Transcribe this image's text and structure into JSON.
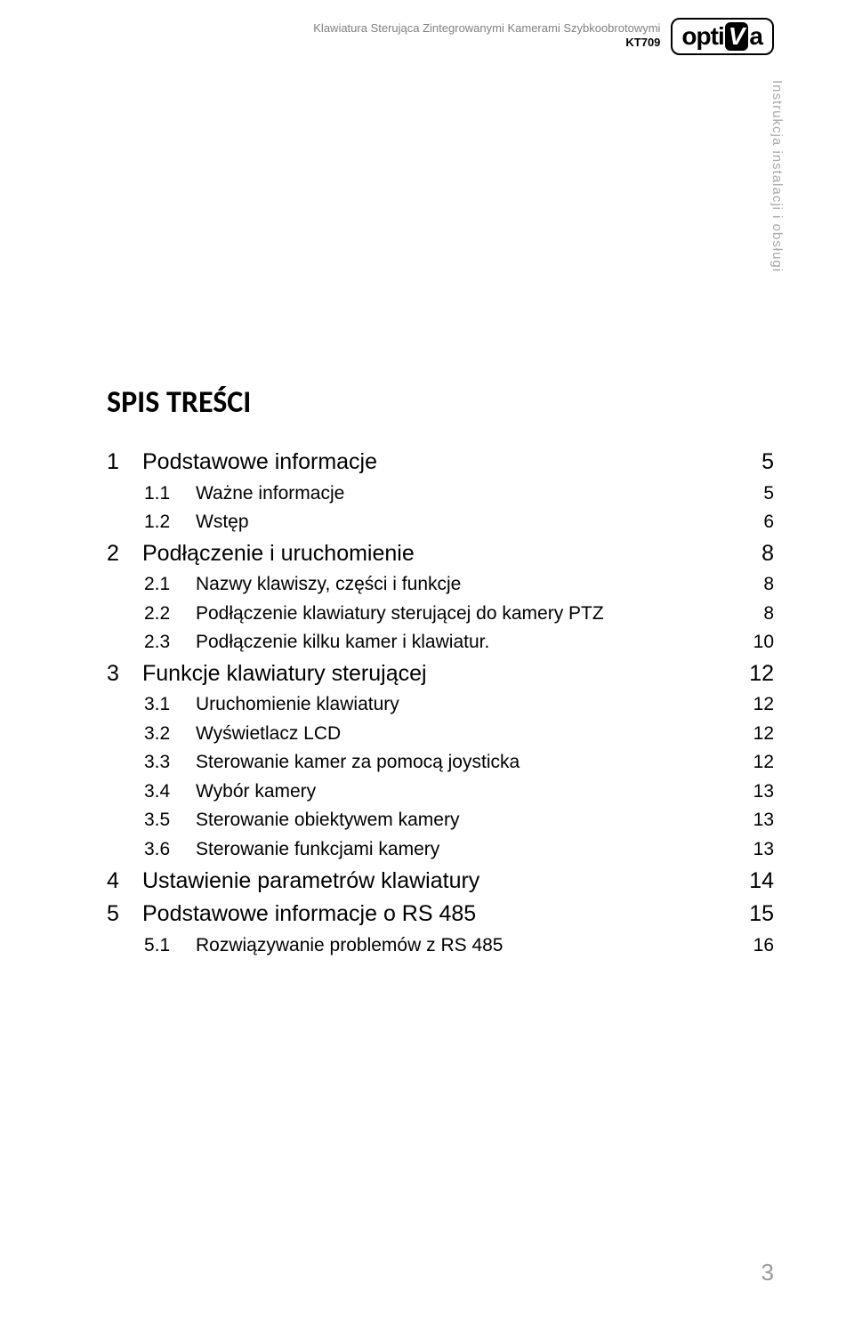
{
  "header": {
    "title": "Klawiatura Sterująca Zintegrowanymi Kamerami Szybkoobrotowymi",
    "model": "KT709",
    "logo_opti": "opti",
    "logo_v": "V",
    "logo_a": "a"
  },
  "vertical_label": "Instrukcja instalacji i obsługi",
  "toc_title": "SPIS TREŚCI",
  "toc": [
    {
      "level": 1,
      "num": "1",
      "label": "Podstawowe informacje",
      "page": "5"
    },
    {
      "level": 2,
      "num": "1.1",
      "label": "Ważne informacje",
      "page": "5"
    },
    {
      "level": 2,
      "num": "1.2",
      "label": "Wstęp",
      "page": "6"
    },
    {
      "level": 1,
      "num": "2",
      "label": "Podłączenie i uruchomienie",
      "page": "8"
    },
    {
      "level": 2,
      "num": "2.1",
      "label": "Nazwy klawiszy, części i funkcje",
      "page": "8"
    },
    {
      "level": 2,
      "num": "2.2",
      "label": "Podłączenie klawiatury sterującej do kamery PTZ",
      "page": "8"
    },
    {
      "level": 2,
      "num": "2.3",
      "label": "Podłączenie kilku kamer i klawiatur.",
      "page": "10"
    },
    {
      "level": 1,
      "num": "3",
      "label": "Funkcje klawiatury sterującej",
      "page": "12"
    },
    {
      "level": 2,
      "num": "3.1",
      "label": "Uruchomienie klawiatury",
      "page": "12"
    },
    {
      "level": 2,
      "num": "3.2",
      "label": "Wyświetlacz LCD",
      "page": "12"
    },
    {
      "level": 2,
      "num": "3.3",
      "label": "Sterowanie kamer za pomocą joysticka",
      "page": "12"
    },
    {
      "level": 2,
      "num": "3.4",
      "label": "Wybór kamery",
      "page": "13"
    },
    {
      "level": 2,
      "num": "3.5",
      "label": "Sterowanie obiektywem kamery",
      "page": "13"
    },
    {
      "level": 2,
      "num": "3.6",
      "label": "Sterowanie funkcjami kamery",
      "page": "13"
    },
    {
      "level": 1,
      "num": "4",
      "label": "Ustawienie parametrów klawiatury",
      "page": "14"
    },
    {
      "level": 1,
      "num": "5",
      "label": "Podstawowe informacje o RS 485",
      "page": "15"
    },
    {
      "level": 2,
      "num": "5.1",
      "label": "Rozwiązywanie problemów z RS 485",
      "page": "16"
    }
  ],
  "page_number": "3",
  "colors": {
    "header_gray": "#808080",
    "vertical_gray": "#a8a8a8",
    "page_num_gray": "#9a9a9a",
    "text": "#000000",
    "background": "#ffffff"
  },
  "typography": {
    "toc_title_fontsize": 34,
    "level1_fontsize": 25,
    "level2_fontsize": 21,
    "header_fontsize": 13,
    "vertical_fontsize": 15,
    "page_number_fontsize": 26
  }
}
